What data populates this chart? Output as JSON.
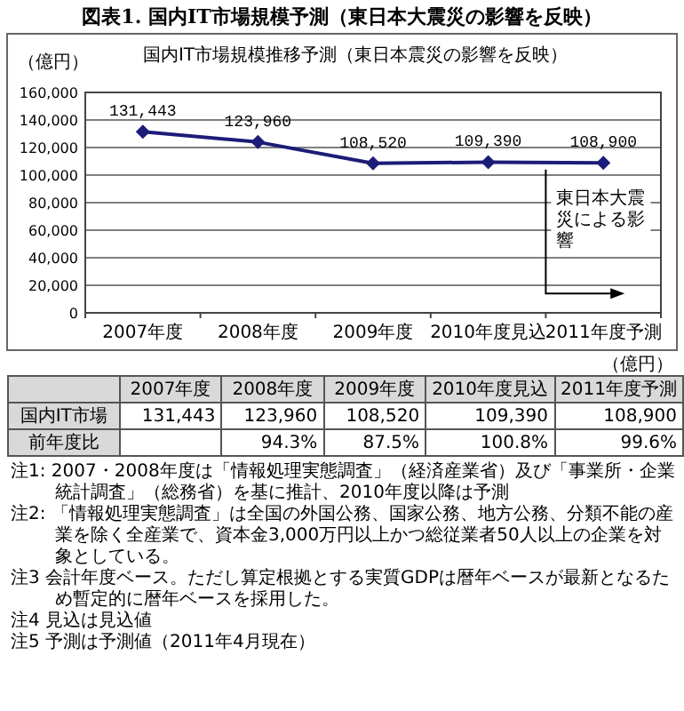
{
  "chart_data": {
    "type": "line",
    "title": "図表1. 国内IT市場規模予測（東日本大震災の影響を反映）",
    "subtitle": "国内IT市場規模推移予測（東日本震災の影響を反映）",
    "ylabel": "（億円）",
    "categories": [
      "2007年度",
      "2008年度",
      "2009年度",
      "2010年度見込",
      "2011年度予測"
    ],
    "series": [
      {
        "name": "国内IT市場",
        "color": "#1c1c78",
        "values": [
          131443,
          123960,
          108520,
          109390,
          108900
        ],
        "value_labels": [
          "131,443",
          "123,960",
          "108,520",
          "109,390",
          "108,900"
        ]
      }
    ],
    "ylim": [
      0,
      160000
    ],
    "yticks": [
      {
        "value": 0,
        "label": "0"
      },
      {
        "value": 20000,
        "label": "20,000"
      },
      {
        "value": 40000,
        "label": "40,000"
      },
      {
        "value": 60000,
        "label": "60,000"
      },
      {
        "value": 80000,
        "label": "80,000"
      },
      {
        "value": 100000,
        "label": "100,000"
      },
      {
        "value": 120000,
        "label": "120,000"
      },
      {
        "value": 140000,
        "label": "140,000"
      },
      {
        "value": 160000,
        "label": "160,000"
      }
    ],
    "grid": "y",
    "marker": "diamond",
    "line_style": "solid",
    "annotations": [
      "東日本大震災による影響",
      "（億円）",
      "前年度比",
      "94.3%",
      "87.5%",
      "100.8%",
      "99.6%",
      "注1: 2007・2008年度は「情報処理実態調査」（経済産業省）及び「事業所・企業統計調査」（総務省）を基に推計、2010年度以降は予測",
      "注2: 「情報処理実態調査」は全国の外国公務、国家公務、地方公務、分類不能の産業を除く全産業で、資本金3,000万円以上かつ総従業者50人以上の企業を対象としている。",
      "注3 会計年度ベース。ただし算定根拠とする実質GDPは暦年ベースが最新となるため暫定的に暦年ベースを採用した。",
      "注4 見込は見込値",
      "注5 予測は予測値（2011年4月現在）"
    ]
  }
}
